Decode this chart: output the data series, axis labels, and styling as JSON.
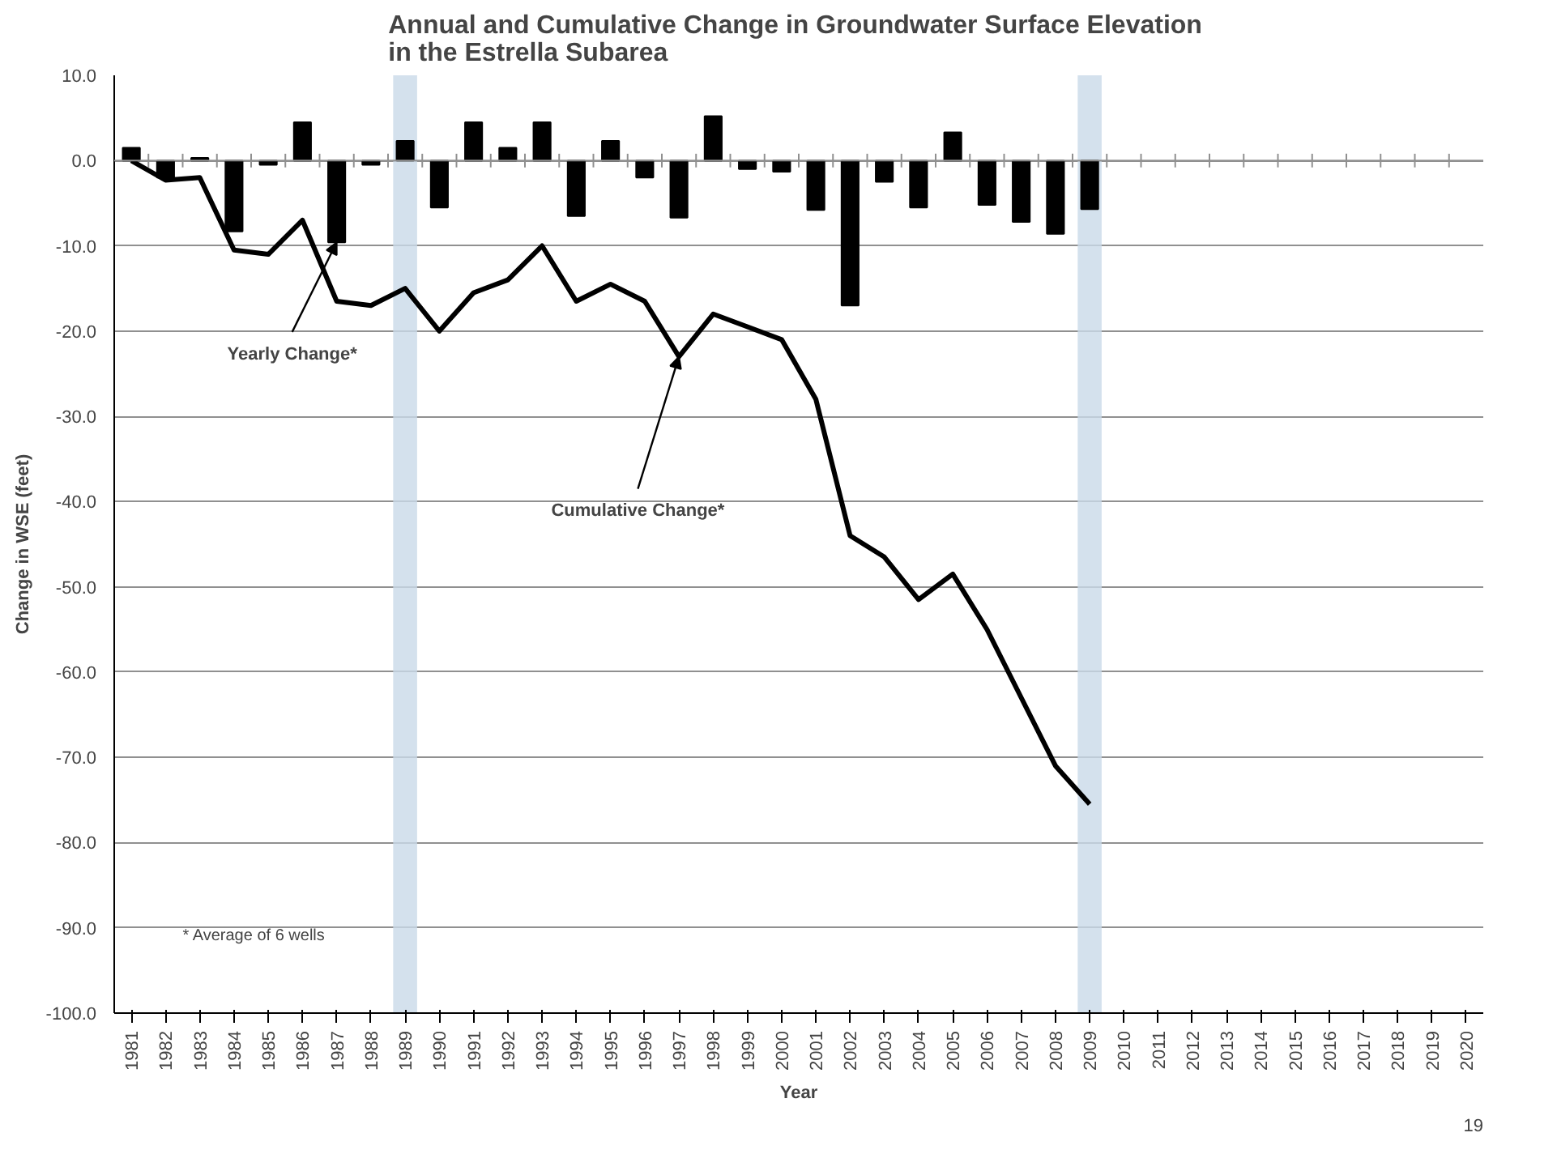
{
  "chart_data": {
    "type": "bar",
    "title": "Annual and Cumulative  Change in Groundwater Surface Elevation\nin the Estrella Subarea",
    "xlabel": "Year",
    "ylabel": "Change in WSE (feet)",
    "categories": [
      "1981",
      "1982",
      "1983",
      "1984",
      "1985",
      "1986",
      "1987",
      "1988",
      "1989",
      "1990",
      "1991",
      "1992",
      "1993",
      "1994",
      "1995",
      "1996",
      "1997",
      "1998",
      "1999",
      "2000",
      "2001",
      "2002",
      "2003",
      "2004",
      "2005",
      "2006",
      "2007",
      "2008",
      "2009",
      "2010",
      "2011",
      "2012",
      "2013",
      "2014",
      "2015",
      "2016",
      "2017",
      "2018",
      "2019",
      "2020"
    ],
    "series": [
      {
        "color": "#000000",
        "values": [
          1.5,
          -2,
          0.3,
          -8.3,
          -0.5,
          4.5,
          -9.6,
          -0.5,
          2.3,
          -5.5,
          4.5,
          1.5,
          4.5,
          -6.5,
          2.3,
          -2,
          -6.7,
          5.2,
          -1,
          -1.3,
          -5.8,
          -17,
          -2.5,
          -5.5,
          3.3,
          -5.2,
          -7.2,
          -8.6,
          -5.7,
          null,
          null,
          null,
          null,
          null,
          null,
          null,
          null,
          null,
          null,
          null
        ]
      },
      {
        "type": "line",
        "color": "#000000",
        "values": [
          0,
          -2.3,
          -2,
          -10.5,
          -11,
          -7,
          -16.5,
          -17,
          -15,
          -20,
          -15.5,
          -14,
          -10,
          -16.5,
          -14.5,
          -16.5,
          -23,
          -18,
          -19.5,
          -21,
          -28,
          -44,
          -46.5,
          -51.5,
          -48.5,
          -55,
          -63,
          -71,
          -75.5,
          null,
          null,
          null,
          null,
          null,
          null,
          null,
          null,
          null,
          null,
          null
        ]
      }
    ],
    "ylim": [
      -100,
      10
    ],
    "yticks": [
      {
        "value": 10,
        "label": "10.0"
      },
      {
        "value": 0,
        "label": "0.0"
      },
      {
        "value": -10,
        "label": "-10.0"
      },
      {
        "value": -20,
        "label": "-20.0"
      },
      {
        "value": -30,
        "label": "-30.0"
      },
      {
        "value": -40,
        "label": "-40.0"
      },
      {
        "value": -50,
        "label": "-50.0"
      },
      {
        "value": -60,
        "label": "-60.0"
      },
      {
        "value": -70,
        "label": "-70.0"
      },
      {
        "value": -80,
        "label": "-80.0"
      },
      {
        "value": -90,
        "label": "-90.0"
      },
      {
        "value": -100,
        "label": "-100.0"
      }
    ],
    "bands": [
      {
        "axis": "x",
        "from": "1989",
        "to": "1989",
        "color": "#c9d9e8"
      },
      {
        "axis": "x",
        "from": "2009",
        "to": "2009",
        "color": "#c9d9e8"
      }
    ],
    "annotations": [
      {
        "text": "Yearly Change*",
        "x": "1987",
        "y": -9.6
      },
      {
        "text": "Cumulative Change*",
        "x": "1997",
        "y": -23
      },
      "* Average of 6 wells",
      "19"
    ],
    "grid": "y",
    "marker": "none",
    "line_style": "solid"
  }
}
